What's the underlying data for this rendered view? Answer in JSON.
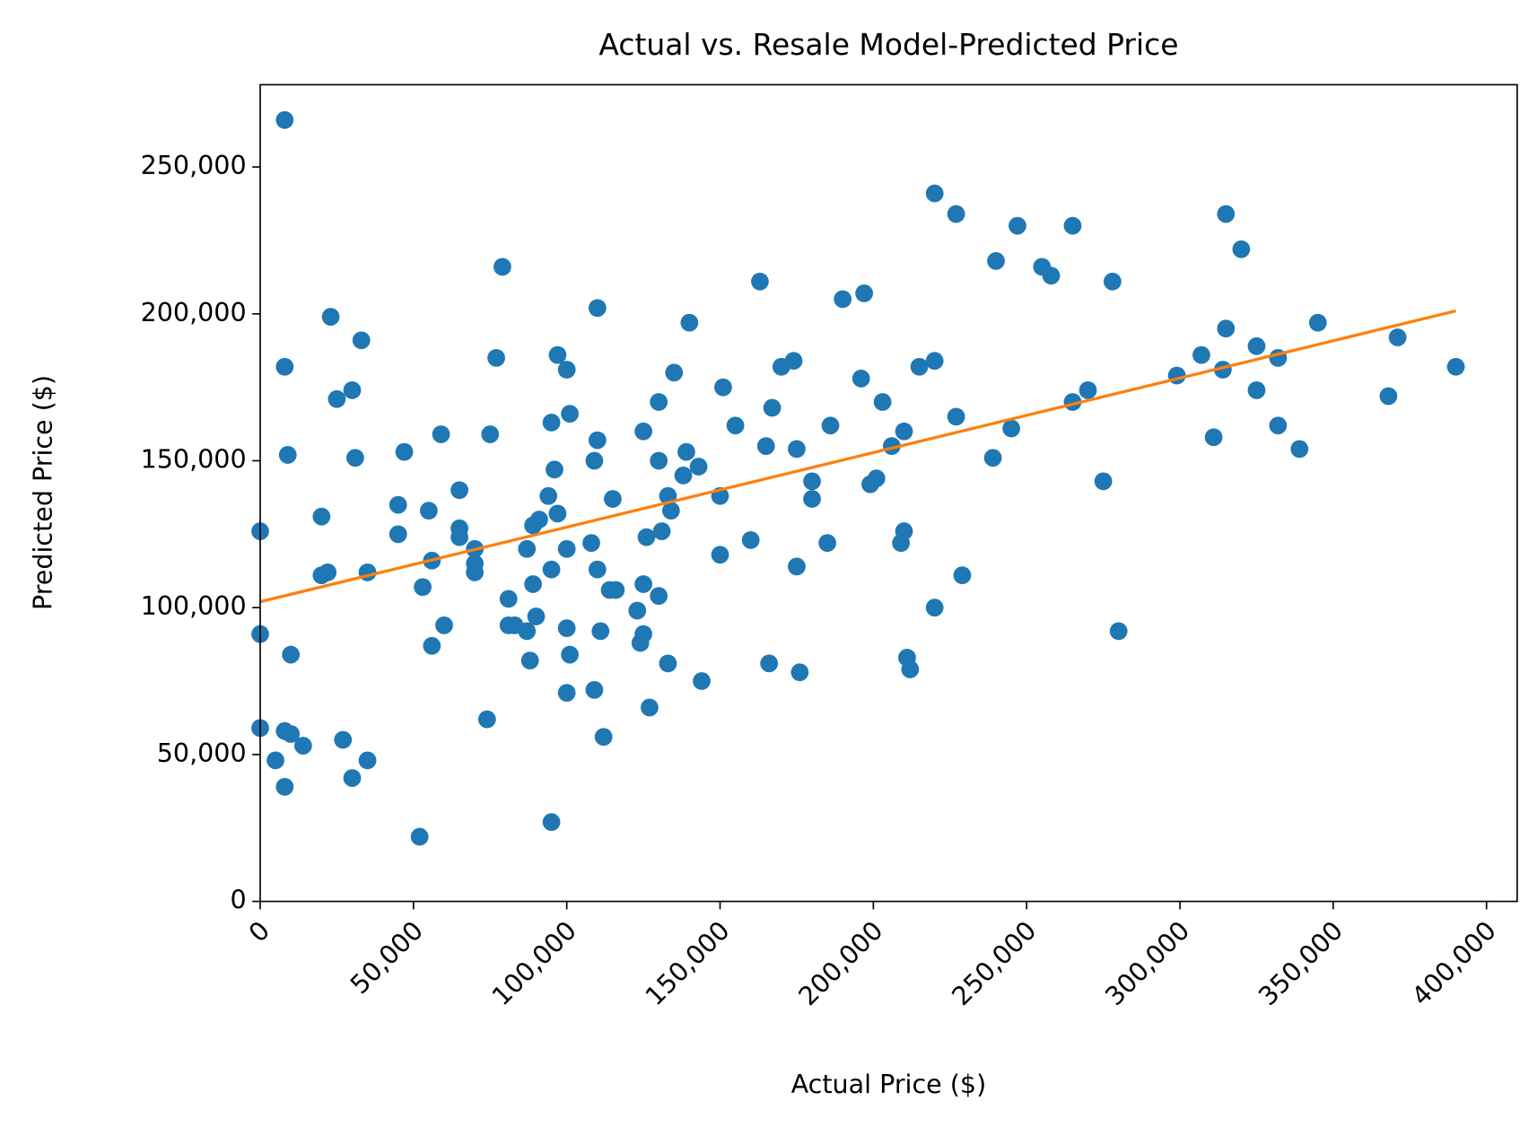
{
  "chart_data": {
    "type": "scatter",
    "title": "Actual vs. Resale Model-Predicted Price",
    "x_label": "Actual Price ($)",
    "y_label": "Predicted Price ($)",
    "xlim": [
      0,
      410000
    ],
    "ylim": [
      0,
      278000
    ],
    "xticks": [
      0,
      {
        "value": 50000,
        "label": "50,000"
      },
      {
        "value": 100000,
        "label": "100,000"
      },
      {
        "value": 150000,
        "label": "150,000"
      },
      {
        "value": 200000,
        "label": "200,000"
      },
      {
        "value": 250000,
        "label": "250,000"
      },
      {
        "value": 300000,
        "label": "300,000"
      },
      {
        "value": 350000,
        "label": "350,000"
      },
      {
        "value": 400000,
        "label": "400,000"
      }
    ],
    "yticks": [
      0,
      {
        "value": 50000,
        "label": "50,000"
      },
      {
        "value": 100000,
        "label": "100,000"
      },
      {
        "value": 150000,
        "label": "150,000"
      },
      {
        "value": 200000,
        "label": "200,000"
      },
      {
        "value": 250000,
        "label": "250,000"
      }
    ],
    "grid": false,
    "series": [
      {
        "type": "scatter",
        "color": "#1f77b4",
        "x": [
          8000,
          0,
          0,
          0,
          8000,
          9000,
          10000,
          8000,
          10000,
          5000,
          8000,
          14000,
          20000,
          23000,
          25000,
          30000,
          33000,
          31000,
          20000,
          22000,
          35000,
          27000,
          30000,
          35000,
          45000,
          45000,
          47000,
          53000,
          55000,
          56000,
          56000,
          60000,
          59000,
          65000,
          65000,
          65000,
          70000,
          70000,
          70000,
          52000,
          75000,
          74000,
          77000,
          79000,
          81000,
          81000,
          83000,
          87000,
          87000,
          88000,
          89000,
          90000,
          89000,
          91000,
          94000,
          95000,
          95000,
          96000,
          97000,
          97000,
          100000,
          101000,
          100000,
          100000,
          101000,
          100000,
          95000,
          108000,
          109000,
          110000,
          110000,
          110000,
          111000,
          109000,
          112000,
          114000,
          115000,
          116000,
          123000,
          124000,
          125000,
          125000,
          125000,
          126000,
          127000,
          130000,
          130000,
          131000,
          130000,
          133000,
          134000,
          133000,
          135000,
          138000,
          139000,
          140000,
          143000,
          144000,
          150000,
          151000,
          150000,
          155000,
          160000,
          163000,
          165000,
          167000,
          166000,
          170000,
          174000,
          175000,
          175000,
          176000,
          180000,
          180000,
          185000,
          186000,
          190000,
          197000,
          196000,
          199000,
          201000,
          203000,
          206000,
          209000,
          210000,
          210000,
          211000,
          212000,
          215000,
          220000,
          220000,
          220000,
          227000,
          227000,
          229000,
          239000,
          240000,
          245000,
          247000,
          255000,
          258000,
          265000,
          265000,
          270000,
          275000,
          278000,
          280000,
          299000,
          307000,
          311000,
          314000,
          315000,
          315000,
          320000,
          325000,
          325000,
          332000,
          332000,
          339000,
          345000,
          368000,
          371000,
          390000
        ],
        "values": [
          266000,
          126000,
          91000,
          59000,
          182000,
          152000,
          84000,
          58000,
          57000,
          48000,
          39000,
          53000,
          131000,
          199000,
          171000,
          174000,
          191000,
          151000,
          111000,
          112000,
          112000,
          55000,
          42000,
          48000,
          135000,
          125000,
          153000,
          107000,
          133000,
          116000,
          87000,
          94000,
          159000,
          140000,
          127000,
          124000,
          120000,
          115000,
          112000,
          22000,
          159000,
          62000,
          185000,
          216000,
          103000,
          94000,
          94000,
          120000,
          92000,
          82000,
          108000,
          97000,
          128000,
          130000,
          138000,
          163000,
          113000,
          147000,
          132000,
          186000,
          181000,
          166000,
          120000,
          93000,
          84000,
          71000,
          27000,
          122000,
          150000,
          157000,
          202000,
          113000,
          92000,
          72000,
          56000,
          106000,
          137000,
          106000,
          99000,
          88000,
          160000,
          108000,
          91000,
          124000,
          66000,
          150000,
          170000,
          126000,
          104000,
          138000,
          133000,
          81000,
          180000,
          145000,
          153000,
          197000,
          148000,
          75000,
          138000,
          175000,
          118000,
          162000,
          123000,
          211000,
          155000,
          168000,
          81000,
          182000,
          184000,
          154000,
          114000,
          78000,
          143000,
          137000,
          122000,
          162000,
          205000,
          207000,
          178000,
          142000,
          144000,
          170000,
          155000,
          122000,
          126000,
          160000,
          83000,
          79000,
          182000,
          184000,
          241000,
          100000,
          234000,
          165000,
          111000,
          151000,
          218000,
          161000,
          230000,
          216000,
          213000,
          230000,
          170000,
          174000,
          143000,
          211000,
          92000,
          179000,
          186000,
          158000,
          181000,
          234000,
          195000,
          222000,
          189000,
          174000,
          185000,
          162000,
          154000,
          197000,
          172000,
          192000,
          182000
        ]
      },
      {
        "type": "line",
        "color": "#ff7f0e",
        "x": [
          0,
          390000
        ],
        "values": [
          102000,
          201000
        ]
      }
    ]
  }
}
